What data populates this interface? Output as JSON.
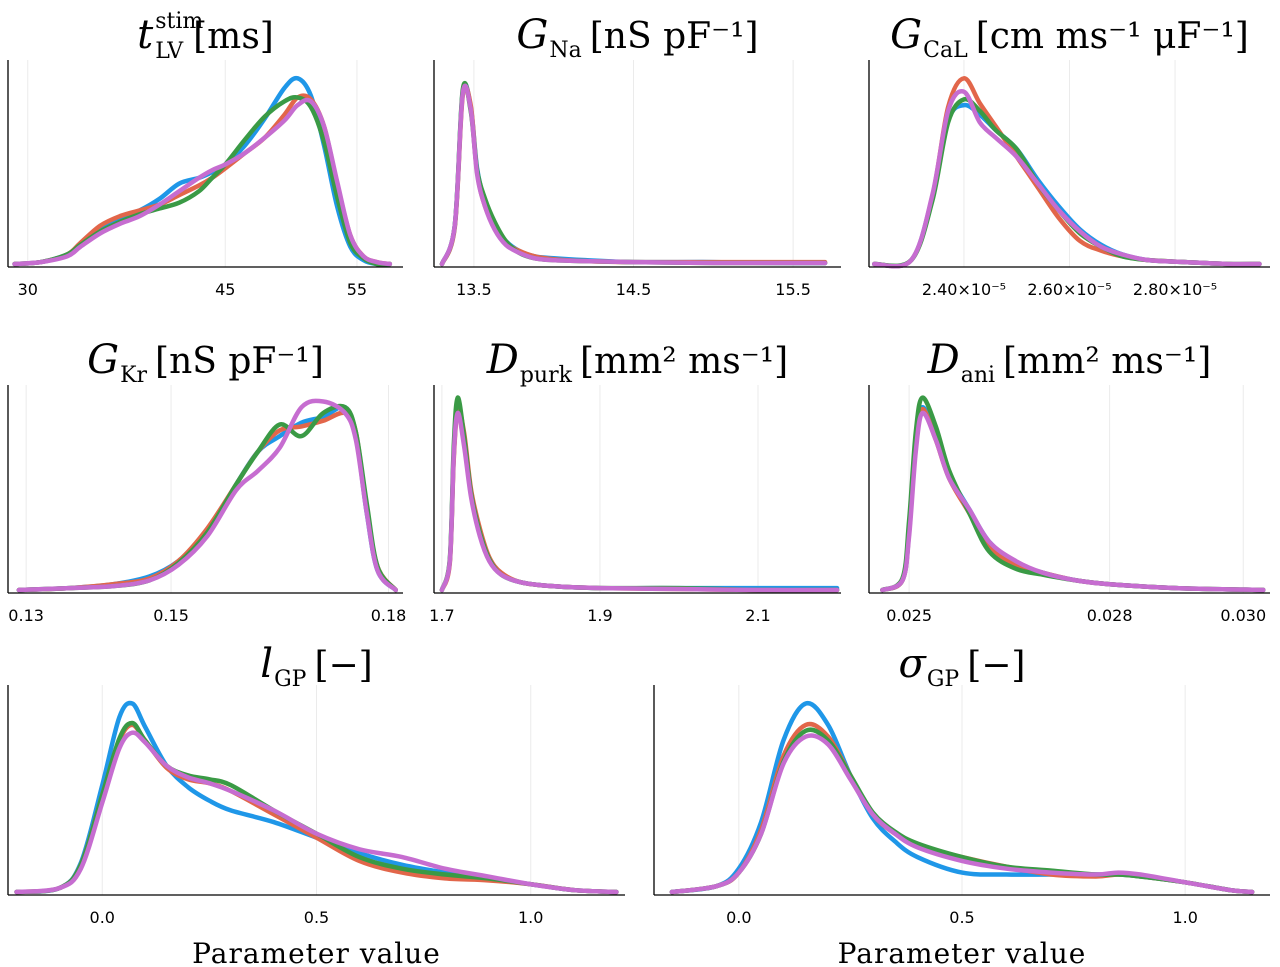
{
  "colors": {
    "chain1": "#1f97e8",
    "chain2": "#e2664a",
    "chain3": "#3a9a45",
    "chain4": "#c66dd0"
  },
  "chart_data": [
    {
      "type": "line",
      "title": "t_LV^stim [ms]",
      "title_main": "t",
      "title_sub": "LV",
      "title_sup": "stim",
      "title_units": "[ms]",
      "xlim": [
        28.5,
        58.5
      ],
      "xticks": [
        30,
        45,
        55
      ],
      "xtick_labels": [
        "30",
        "45",
        "55"
      ],
      "xlabel": "",
      "series_x": [
        29,
        31,
        33,
        34,
        35.5,
        37,
        38.5,
        40,
        41.5,
        43,
        44,
        45,
        46.5,
        48,
        49.5,
        50.5,
        51.5,
        52.5,
        53.5,
        54.5,
        55.5,
        56.5,
        57.5
      ],
      "series": [
        {
          "values": [
            0,
            0.01,
            0.05,
            0.1,
            0.18,
            0.24,
            0.28,
            0.34,
            0.42,
            0.45,
            0.48,
            0.52,
            0.62,
            0.76,
            0.92,
            0.97,
            0.88,
            0.62,
            0.3,
            0.09,
            0.02,
            0,
            0
          ]
        },
        {
          "values": [
            0,
            0.01,
            0.05,
            0.11,
            0.2,
            0.25,
            0.28,
            0.31,
            0.36,
            0.41,
            0.45,
            0.5,
            0.58,
            0.66,
            0.78,
            0.87,
            0.86,
            0.72,
            0.42,
            0.15,
            0.04,
            0.01,
            0
          ]
        },
        {
          "values": [
            0,
            0.01,
            0.05,
            0.1,
            0.17,
            0.22,
            0.26,
            0.29,
            0.32,
            0.38,
            0.45,
            0.52,
            0.65,
            0.77,
            0.85,
            0.87,
            0.82,
            0.64,
            0.35,
            0.11,
            0.03,
            0,
            0
          ]
        },
        {
          "values": [
            0,
            0.01,
            0.04,
            0.09,
            0.16,
            0.21,
            0.25,
            0.31,
            0.38,
            0.45,
            0.49,
            0.52,
            0.58,
            0.66,
            0.75,
            0.83,
            0.85,
            0.72,
            0.43,
            0.15,
            0.04,
            0.01,
            0
          ]
        }
      ]
    },
    {
      "type": "line",
      "title": "G_Na [nS pF^-1]",
      "title_main": "G",
      "title_sub": "Na",
      "title_sup": "",
      "title_units": "[nS pF⁻¹]",
      "xlim": [
        13.25,
        15.8
      ],
      "xticks": [
        13.5,
        14.5,
        15.5
      ],
      "xtick_labels": [
        "13.5",
        "14.5",
        "15.5"
      ],
      "xlabel": "",
      "series_x": [
        13.3,
        13.38,
        13.43,
        13.48,
        13.52,
        13.57,
        13.63,
        13.7,
        13.78,
        13.88,
        14.0,
        14.2,
        14.5,
        15.0,
        15.4,
        15.7
      ],
      "series": [
        {
          "values": [
            0,
            0.2,
            0.9,
            0.82,
            0.5,
            0.32,
            0.2,
            0.12,
            0.07,
            0.04,
            0.03,
            0.02,
            0.01,
            0.01,
            0.005,
            0.005
          ]
        },
        {
          "values": [
            0,
            0.19,
            0.88,
            0.83,
            0.48,
            0.3,
            0.2,
            0.11,
            0.07,
            0.04,
            0.025,
            0.015,
            0.01,
            0.01,
            0.01,
            0.01
          ]
        },
        {
          "values": [
            0,
            0.2,
            0.91,
            0.8,
            0.49,
            0.34,
            0.22,
            0.12,
            0.06,
            0.03,
            0.02,
            0.015,
            0.01,
            0.005,
            0.005,
            0.005
          ]
        },
        {
          "values": [
            0,
            0.2,
            0.89,
            0.81,
            0.47,
            0.3,
            0.18,
            0.1,
            0.06,
            0.03,
            0.02,
            0.015,
            0.01,
            0.005,
            0.005,
            0.005
          ]
        }
      ]
    },
    {
      "type": "line",
      "title": "G_CaL [cm ms^-1 μF^-1]",
      "title_main": "G",
      "title_sub": "CaL",
      "title_sup": "",
      "title_units": "[cm ms⁻¹ μF⁻¹]",
      "xlim": [
        2.22e-05,
        2.98e-05
      ],
      "xticks": [
        2.4e-05,
        2.6e-05,
        2.8e-05
      ],
      "xtick_labels": [
        "2.40×10⁻⁵",
        "2.60×10⁻⁵",
        "2.80×10⁻⁵"
      ],
      "xlabel": "",
      "series_x": [
        2.23e-05,
        2.3e-05,
        2.34e-05,
        2.37e-05,
        2.4e-05,
        2.43e-05,
        2.46e-05,
        2.5e-05,
        2.54e-05,
        2.58e-05,
        2.62e-05,
        2.66e-05,
        2.7e-05,
        2.75e-05,
        2.82e-05,
        2.9e-05,
        2.96e-05
      ],
      "series": [
        {
          "values": [
            0,
            0.02,
            0.35,
            0.75,
            0.83,
            0.78,
            0.7,
            0.6,
            0.44,
            0.3,
            0.18,
            0.1,
            0.05,
            0.02,
            0.01,
            0,
            0
          ]
        },
        {
          "values": [
            0,
            0.02,
            0.35,
            0.82,
            0.97,
            0.84,
            0.72,
            0.56,
            0.4,
            0.24,
            0.12,
            0.07,
            0.04,
            0.02,
            0.01,
            0,
            0
          ]
        },
        {
          "values": [
            0,
            0.02,
            0.33,
            0.74,
            0.86,
            0.8,
            0.7,
            0.6,
            0.42,
            0.28,
            0.16,
            0.09,
            0.04,
            0.02,
            0.01,
            0,
            0
          ]
        },
        {
          "values": [
            0,
            0.02,
            0.36,
            0.8,
            0.9,
            0.74,
            0.66,
            0.56,
            0.42,
            0.28,
            0.17,
            0.09,
            0.05,
            0.02,
            0.01,
            0,
            0
          ]
        }
      ]
    },
    {
      "type": "line",
      "title": "G_Kr [nS pF^-1]",
      "title_main": "G",
      "title_sub": "Kr",
      "title_sup": "",
      "title_units": "[nS pF⁻¹]",
      "xlim": [
        0.1275,
        0.182
      ],
      "xticks": [
        0.13,
        0.15,
        0.18
      ],
      "xtick_labels": [
        "0.13",
        "0.15",
        "0.18"
      ],
      "xlabel": "",
      "series_x": [
        0.129,
        0.136,
        0.142,
        0.147,
        0.151,
        0.155,
        0.159,
        0.162,
        0.165,
        0.168,
        0.171,
        0.174,
        0.1755,
        0.177,
        0.1785,
        0.181
      ],
      "series": [
        {
          "values": [
            0,
            0.01,
            0.03,
            0.07,
            0.15,
            0.3,
            0.55,
            0.72,
            0.8,
            0.87,
            0.9,
            0.95,
            0.8,
            0.4,
            0.1,
            0
          ]
        },
        {
          "values": [
            0,
            0.01,
            0.03,
            0.06,
            0.15,
            0.32,
            0.55,
            0.72,
            0.83,
            0.85,
            0.88,
            0.92,
            0.82,
            0.42,
            0.12,
            0
          ]
        },
        {
          "values": [
            0,
            0.01,
            0.02,
            0.05,
            0.14,
            0.3,
            0.55,
            0.72,
            0.86,
            0.8,
            0.92,
            0.95,
            0.82,
            0.45,
            0.12,
            0
          ]
        },
        {
          "values": [
            0,
            0.01,
            0.02,
            0.05,
            0.13,
            0.28,
            0.52,
            0.62,
            0.74,
            0.95,
            0.98,
            0.92,
            0.78,
            0.4,
            0.1,
            0
          ]
        }
      ]
    },
    {
      "type": "line",
      "title": "D_purk [mm^2 ms^-1]",
      "title_main": "D",
      "title_sub": "purk",
      "title_sup": "",
      "title_units": "[mm² ms⁻¹]",
      "xlim": [
        1.69,
        2.205
      ],
      "xticks": [
        1.7,
        1.9,
        2.1
      ],
      "xtick_labels": [
        "1.7",
        "1.9",
        "2.1"
      ],
      "xlabel": "",
      "series_x": [
        1.7,
        1.71,
        1.715,
        1.72,
        1.728,
        1.737,
        1.748,
        1.76,
        1.775,
        1.8,
        1.84,
        1.9,
        2.0,
        2.1,
        2.2
      ],
      "series": [
        {
          "values": [
            0,
            0.15,
            0.7,
            0.95,
            0.78,
            0.5,
            0.3,
            0.16,
            0.08,
            0.04,
            0.02,
            0.01,
            0.01,
            0.01,
            0.01
          ]
        },
        {
          "values": [
            0,
            0.14,
            0.68,
            0.94,
            0.82,
            0.52,
            0.32,
            0.17,
            0.09,
            0.04,
            0.02,
            0.01,
            0.005,
            0,
            0
          ]
        },
        {
          "values": [
            0,
            0.16,
            0.75,
            1.0,
            0.8,
            0.5,
            0.3,
            0.16,
            0.08,
            0.04,
            0.02,
            0.01,
            0.01,
            0,
            0
          ]
        },
        {
          "values": [
            0,
            0.15,
            0.7,
            0.92,
            0.75,
            0.48,
            0.28,
            0.15,
            0.08,
            0.04,
            0.02,
            0.01,
            0.005,
            0,
            0
          ]
        }
      ]
    },
    {
      "type": "line",
      "title": "D_ani [mm^2 ms^-1]",
      "title_main": "D",
      "title_sub": "ani",
      "title_sup": "",
      "title_units": "[mm² ms⁻¹]",
      "xlim": [
        0.0244,
        0.0304
      ],
      "xticks": [
        0.025,
        0.028,
        0.03
      ],
      "xtick_labels": [
        "0.025",
        "0.028",
        "0.030"
      ],
      "xlabel": "",
      "series_x": [
        0.0246,
        0.0249,
        0.025,
        0.0251,
        0.0252,
        0.0254,
        0.0256,
        0.0259,
        0.0262,
        0.0266,
        0.027,
        0.0275,
        0.028,
        0.029,
        0.0303
      ],
      "series": [
        {
          "values": [
            0,
            0.05,
            0.3,
            0.78,
            0.95,
            0.8,
            0.6,
            0.42,
            0.25,
            0.14,
            0.09,
            0.05,
            0.03,
            0.01,
            0
          ]
        },
        {
          "values": [
            0,
            0.05,
            0.3,
            0.76,
            0.94,
            0.78,
            0.58,
            0.4,
            0.22,
            0.13,
            0.09,
            0.05,
            0.03,
            0.01,
            0
          ]
        },
        {
          "values": [
            0,
            0.06,
            0.36,
            0.82,
            1.0,
            0.85,
            0.62,
            0.4,
            0.2,
            0.11,
            0.08,
            0.05,
            0.03,
            0.01,
            0
          ]
        },
        {
          "values": [
            0,
            0.05,
            0.28,
            0.72,
            0.92,
            0.78,
            0.58,
            0.42,
            0.25,
            0.15,
            0.09,
            0.05,
            0.03,
            0.01,
            0
          ]
        }
      ]
    },
    {
      "type": "line",
      "title": "l_GP [-]",
      "title_main": "l",
      "title_sub": "GP",
      "title_sup": "",
      "title_units": "[−]",
      "xlim": [
        -0.22,
        1.22
      ],
      "xticks": [
        0.0,
        0.5,
        1.0
      ],
      "xtick_labels": [
        "0.0",
        "0.5",
        "1.0"
      ],
      "xlabel": "Parameter value",
      "series_x": [
        -0.2,
        -0.1,
        -0.05,
        0.0,
        0.04,
        0.07,
        0.1,
        0.15,
        0.2,
        0.25,
        0.3,
        0.4,
        0.5,
        0.6,
        0.7,
        0.8,
        0.9,
        1.0,
        1.1,
        1.2
      ],
      "series": [
        {
          "values": [
            0,
            0.02,
            0.15,
            0.55,
            0.9,
            0.97,
            0.85,
            0.65,
            0.54,
            0.47,
            0.42,
            0.36,
            0.28,
            0.2,
            0.14,
            0.1,
            0.07,
            0.04,
            0.01,
            0
          ]
        },
        {
          "values": [
            0,
            0.02,
            0.14,
            0.5,
            0.78,
            0.86,
            0.78,
            0.64,
            0.58,
            0.56,
            0.52,
            0.4,
            0.28,
            0.16,
            0.1,
            0.07,
            0.06,
            0.04,
            0.01,
            0
          ]
        },
        {
          "values": [
            0,
            0.02,
            0.14,
            0.5,
            0.79,
            0.87,
            0.78,
            0.65,
            0.6,
            0.58,
            0.55,
            0.42,
            0.3,
            0.18,
            0.12,
            0.09,
            0.07,
            0.04,
            0.01,
            0
          ]
        },
        {
          "values": [
            0,
            0.02,
            0.12,
            0.46,
            0.74,
            0.82,
            0.77,
            0.65,
            0.59,
            0.56,
            0.52,
            0.42,
            0.3,
            0.22,
            0.18,
            0.12,
            0.08,
            0.04,
            0.01,
            0
          ]
        }
      ]
    },
    {
      "type": "line",
      "title": "σ_GP [-]",
      "title_main": "σ",
      "title_sub": "GP",
      "title_sup": "",
      "title_units": "[−]",
      "xlim": [
        -0.19,
        1.19
      ],
      "xticks": [
        0.0,
        0.5,
        1.0
      ],
      "xtick_labels": [
        "0.0",
        "0.5",
        "1.0"
      ],
      "xlabel": "Parameter value",
      "series_x": [
        -0.15,
        -0.05,
        0.0,
        0.05,
        0.1,
        0.15,
        0.2,
        0.25,
        0.3,
        0.35,
        0.4,
        0.5,
        0.6,
        0.7,
        0.8,
        0.85,
        0.9,
        1.0,
        1.1,
        1.15
      ],
      "series": [
        {
          "values": [
            0,
            0.03,
            0.12,
            0.36,
            0.78,
            0.97,
            0.86,
            0.6,
            0.38,
            0.26,
            0.18,
            0.1,
            0.09,
            0.09,
            0.09,
            0.09,
            0.08,
            0.05,
            0.01,
            0
          ]
        },
        {
          "values": [
            0,
            0.03,
            0.1,
            0.32,
            0.7,
            0.86,
            0.8,
            0.6,
            0.4,
            0.3,
            0.24,
            0.18,
            0.13,
            0.09,
            0.08,
            0.09,
            0.08,
            0.05,
            0.01,
            0
          ]
        },
        {
          "values": [
            0,
            0.03,
            0.1,
            0.3,
            0.67,
            0.83,
            0.78,
            0.6,
            0.41,
            0.31,
            0.25,
            0.18,
            0.13,
            0.11,
            0.09,
            0.09,
            0.08,
            0.05,
            0.01,
            0
          ]
        },
        {
          "values": [
            0,
            0.03,
            0.1,
            0.3,
            0.66,
            0.8,
            0.76,
            0.58,
            0.4,
            0.3,
            0.23,
            0.16,
            0.12,
            0.1,
            0.09,
            0.1,
            0.09,
            0.05,
            0.01,
            0
          ]
        }
      ]
    }
  ]
}
